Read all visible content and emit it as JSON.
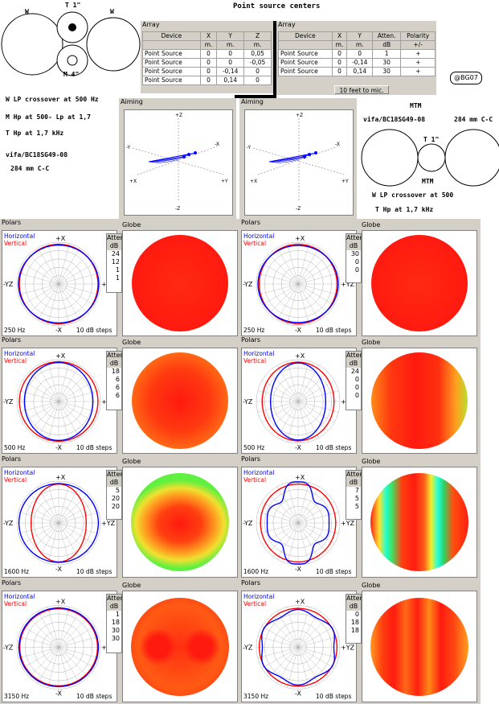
{
  "header": {
    "title": "Point source centers",
    "label_w_left": "W",
    "label_w_right": "W",
    "label_t": "T 1\"",
    "label_m": "M 4\"",
    "copyright": "@BG07"
  },
  "array_left": {
    "title": "Array",
    "columns": [
      "Device",
      "X",
      "Y",
      "Z"
    ],
    "units": [
      "",
      "m.",
      "m.",
      "m."
    ],
    "rows": [
      [
        "Point Source",
        "0",
        "0",
        "0,05"
      ],
      [
        "Point Source",
        "0",
        "0",
        "-0,05"
      ],
      [
        "Point Source",
        "0",
        "-0,14",
        "0"
      ],
      [
        "Point Source",
        "0",
        "0,14",
        "0"
      ]
    ]
  },
  "array_right": {
    "title": "Array",
    "columns": [
      "Device",
      "X",
      "Y",
      "Atten.",
      "Polarity"
    ],
    "units": [
      "",
      "m.",
      "m.",
      "dB",
      "+/-"
    ],
    "rows": [
      [
        "Point Source",
        "0",
        "0",
        "1",
        "+"
      ],
      [
        "Point Source",
        "0",
        "-0,14",
        "30",
        "+"
      ],
      [
        "Point Source",
        "0",
        "0,14",
        "30",
        "+"
      ]
    ],
    "mic_button": "10 feet to mic."
  },
  "notes_left": {
    "line1": "W LP crossover at 500 Hz",
    "line2": "M Hp at 500- Lp at 1,7",
    "line3": "T Hp at 1,7 kHz",
    "line4": "vifa/BC18SG49-08",
    "line5": "284 mm C-C"
  },
  "notes_right": {
    "title": "MTM",
    "line1": "vifa/BC18SG49-08",
    "line1b": "284 mm C-C",
    "line2": "W LP crossover at 500",
    "line3": "T Hp at 1,7 kHz",
    "label_t": "T 1\"",
    "label_mtm": "MTM"
  },
  "aiming": {
    "title": "Aiming",
    "axes": {
      "pz": "+Z",
      "nz": "-Z",
      "px": "+X",
      "nx": "-X",
      "py": "+Y",
      "ny": "-Y"
    }
  },
  "polar_common": {
    "polars_title": "Polars",
    "globe_title": "Globe",
    "legend_h": "Horizontal",
    "legend_v": "Vertical",
    "atten_head1": "Atten.",
    "atten_head2": "dB",
    "top": "+X",
    "bottom": "-X",
    "left": "-YZ",
    "right": "+YZ",
    "steps": "10 dB steps"
  },
  "colors": {
    "window": "#d4d0c8",
    "horizontal": "#0000ff",
    "vertical": "#ff0000",
    "grid": "#a0a0a0"
  },
  "panels": [
    {
      "freq": "250 Hz",
      "atten": [
        "24",
        "12",
        "1",
        "1"
      ],
      "h": {
        "a": 0.96,
        "b": 0.93,
        "shape": "plain"
      },
      "v": {
        "a": 0.94,
        "b": 0.95,
        "shape": "plain"
      },
      "globe": "uniform"
    },
    {
      "freq": "250 Hz",
      "atten": [
        "30",
        "0",
        "0"
      ],
      "h": {
        "a": 0.96,
        "b": 0.92,
        "shape": "plain"
      },
      "v": {
        "a": 0.93,
        "b": 0.95,
        "shape": "plain"
      },
      "globe": "uniform"
    },
    {
      "freq": "500 Hz",
      "atten": [
        "18",
        "6",
        "6",
        "6"
      ],
      "h": {
        "a": 0.82,
        "b": 0.93,
        "shape": "plain"
      },
      "v": {
        "a": 0.94,
        "b": 0.95,
        "shape": "plain"
      },
      "globe": "warm"
    },
    {
      "freq": "500 Hz",
      "atten": [
        "24",
        "0",
        "0",
        "0"
      ],
      "h": {
        "a": 0.66,
        "b": 0.92,
        "shape": "plain"
      },
      "v": {
        "a": 0.86,
        "b": 0.94,
        "shape": "plain"
      },
      "globe": "striped-soft"
    },
    {
      "freq": "1600 Hz",
      "atten": [
        "5",
        "20",
        "20"
      ],
      "h": {
        "a": 0.95,
        "b": 0.94,
        "shape": "plain"
      },
      "v": {
        "a": 0.66,
        "b": 0.93,
        "shape": "plain"
      },
      "globe": "blob"
    },
    {
      "freq": "1600 Hz",
      "atten": [
        "7",
        "5",
        "5"
      ],
      "h": {
        "a": 0.68,
        "b": 0.9,
        "shape": "lobes"
      },
      "v": {
        "a": 0.9,
        "b": 0.93,
        "shape": "plain"
      },
      "globe": "striped"
    },
    {
      "freq": "3150 Hz",
      "atten": [
        "1",
        "18",
        "30",
        "30"
      ],
      "h": {
        "a": 0.95,
        "b": 0.94,
        "shape": "plain"
      },
      "v": {
        "a": 0.93,
        "b": 0.92,
        "shape": "plain"
      },
      "globe": "spotted"
    },
    {
      "freq": "3150 Hz",
      "atten": [
        "0",
        "18",
        "18"
      ],
      "h": {
        "a": 0.9,
        "b": 0.86,
        "shape": "wavy"
      },
      "v": {
        "a": 0.93,
        "b": 0.93,
        "shape": "plain"
      },
      "globe": "striped-warm"
    }
  ]
}
